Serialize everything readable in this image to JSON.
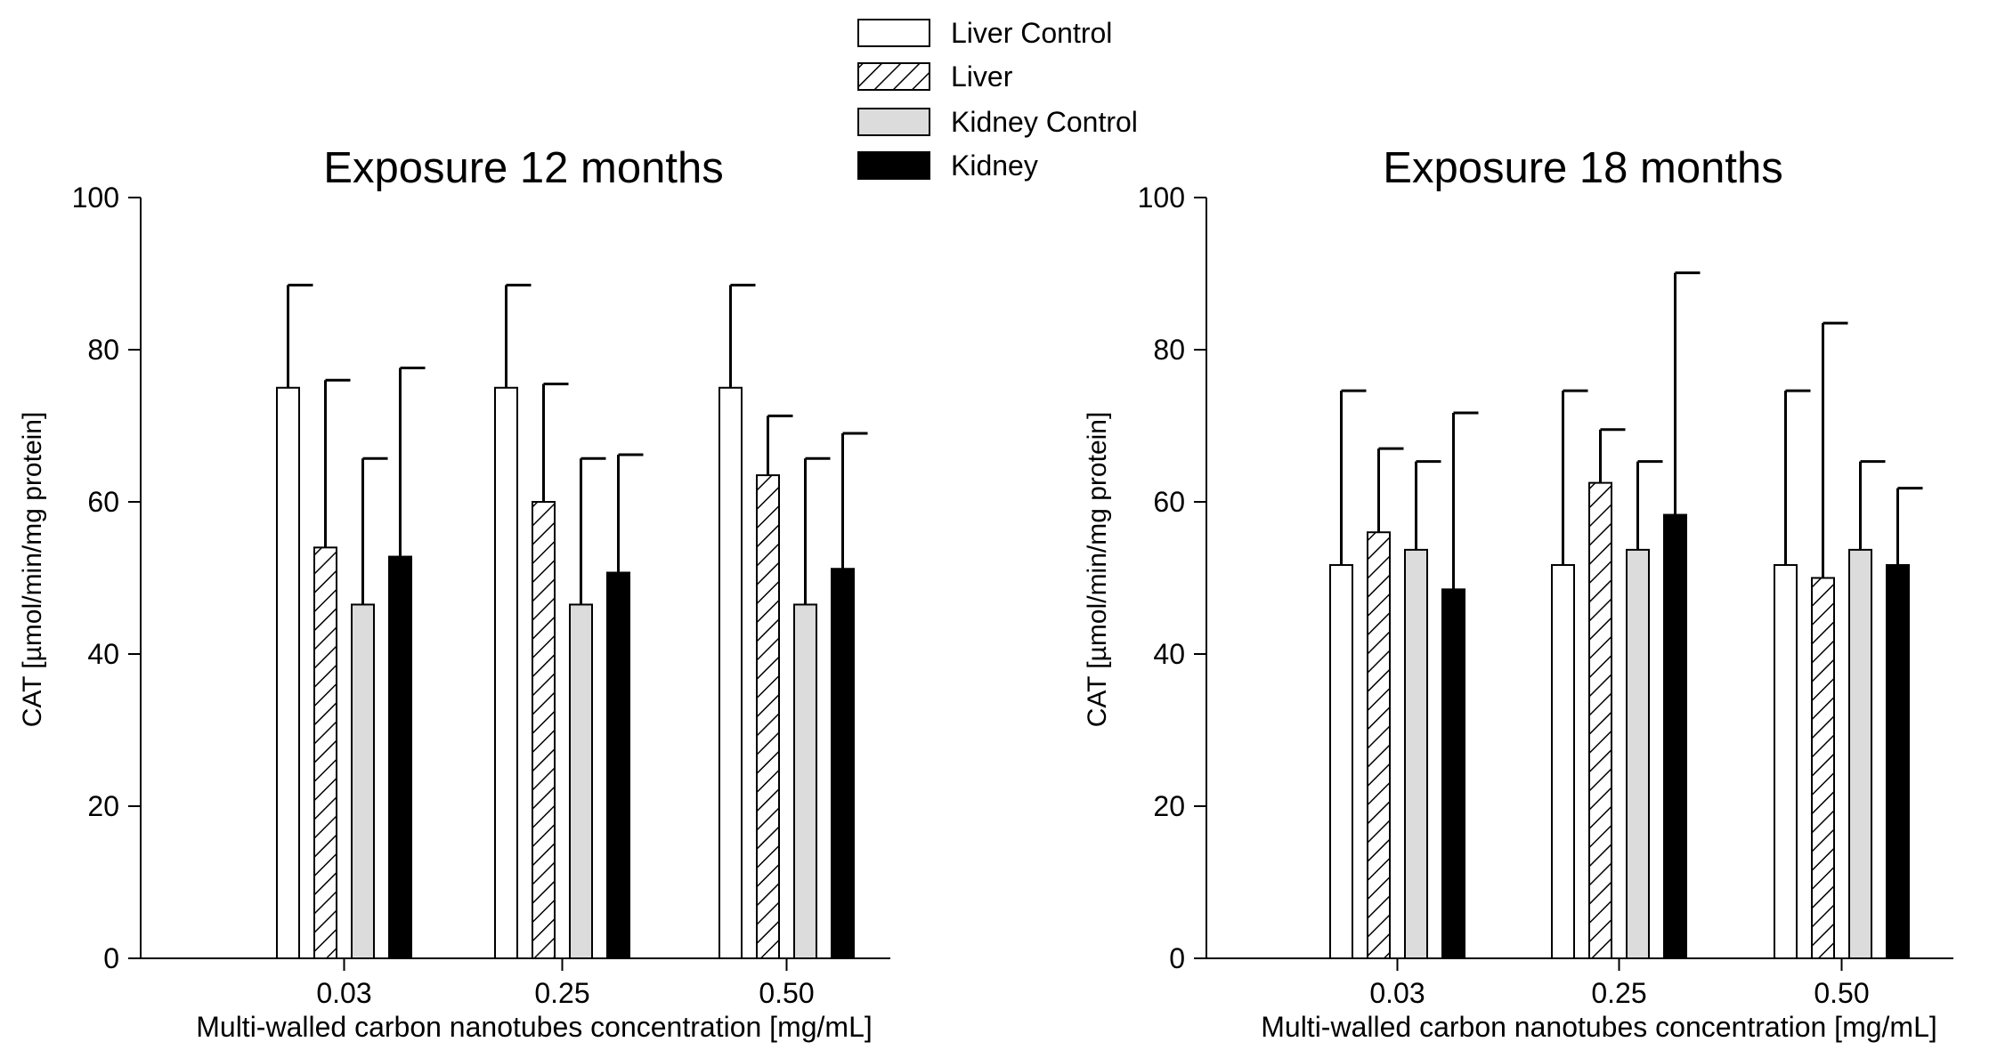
{
  "legend": {
    "placement": "top-center",
    "entries": [
      {
        "label": "Liver Control",
        "fill": "white"
      },
      {
        "label": "Liver",
        "fill": "hatch"
      },
      {
        "label": "Kidney Control",
        "fill": "#dcdcdc"
      },
      {
        "label": "Kidney",
        "fill": "#000000"
      }
    ]
  },
  "chart_data": [
    {
      "type": "bar",
      "title": "Exposure 12 months",
      "xlabel": "Multi-walled carbon nanotubes concentration [mg/mL]",
      "ylabel": "CAT [µmol/min/mg protein]",
      "ylim": [
        0,
        100
      ],
      "yticks": [
        "0",
        "20",
        "40",
        "60",
        "80",
        "100"
      ],
      "categories": [
        "0.03",
        "0.25",
        "0.50"
      ],
      "grid": false,
      "series": [
        {
          "name": "Liver Control",
          "values": [
            75,
            75,
            75
          ],
          "errors": [
            13.5,
            13.5,
            13.5
          ]
        },
        {
          "name": "Liver",
          "values": [
            54,
            60,
            63.5
          ],
          "errors": [
            22,
            15.5,
            7.8
          ]
        },
        {
          "name": "Kidney Control",
          "values": [
            46.5,
            46.5,
            46.5
          ],
          "errors": [
            19.2,
            19.2,
            19.2
          ]
        },
        {
          "name": "Kidney",
          "values": [
            52.8,
            50.7,
            51.2
          ],
          "errors": [
            24.8,
            15.5,
            17.8
          ]
        }
      ]
    },
    {
      "type": "bar",
      "title": "Exposure 18 months",
      "xlabel": "Multi-walled carbon nanotubes concentration [mg/mL]",
      "ylabel": "CAT [µmol/min/mg protein]",
      "ylim": [
        0,
        100
      ],
      "yticks": [
        "0",
        "20",
        "40",
        "60",
        "80",
        "100"
      ],
      "categories": [
        "0.03",
        "0.25",
        "0.50"
      ],
      "grid": false,
      "series": [
        {
          "name": "Liver Control",
          "values": [
            51.7,
            51.7,
            51.7
          ],
          "errors": [
            22.9,
            22.9,
            22.9
          ]
        },
        {
          "name": "Liver",
          "values": [
            56,
            62.5,
            50
          ],
          "errors": [
            11,
            7,
            33.5
          ]
        },
        {
          "name": "Kidney Control",
          "values": [
            53.7,
            53.7,
            53.7
          ],
          "errors": [
            11.6,
            11.6,
            11.6
          ]
        },
        {
          "name": "Kidney",
          "values": [
            48.5,
            58.3,
            51.7
          ],
          "errors": [
            23.2,
            31.8,
            10.1
          ]
        }
      ]
    }
  ]
}
